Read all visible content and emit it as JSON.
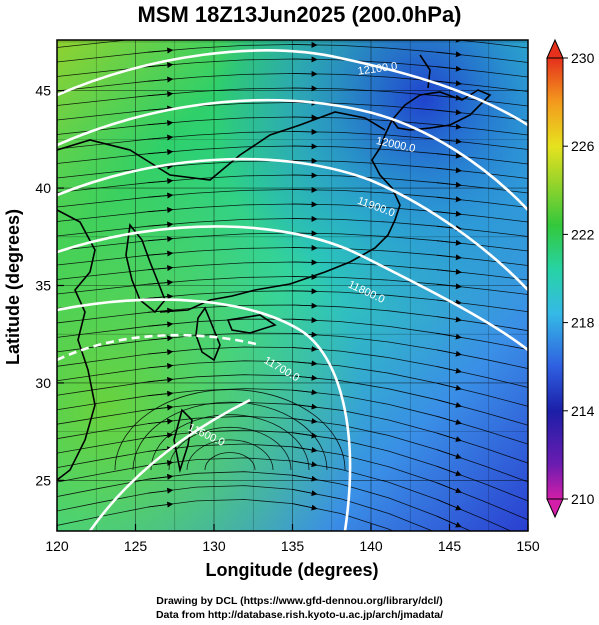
{
  "title": "MSM 18Z13Jun2025 (200.0hPa)",
  "map": {
    "x_axis": {
      "label": "Longitude (degrees)",
      "range": [
        120,
        150
      ],
      "ticks": [
        "120",
        "125",
        "130",
        "135",
        "140",
        "145",
        "150"
      ]
    },
    "y_axis": {
      "label": "Latitude (degrees)",
      "range": [
        22.4,
        47.6
      ],
      "ticks": [
        "25",
        "30",
        "35",
        "40",
        "45"
      ]
    },
    "grid": true,
    "field": "temperature (shaded) with wind streamlines and geopotential height contours",
    "contour_labels": [
      "12100.0",
      "12000.0",
      "11900.0",
      "11800.0",
      "11700.0",
      "11600.0"
    ]
  },
  "colorbar": {
    "min": 210,
    "max": 230,
    "tick_labels": [
      "230",
      "226",
      "222",
      "218",
      "214",
      "210"
    ],
    "colors": [
      "#d21ea8",
      "#1b1fa8",
      "#2f5fe0",
      "#35b9e6",
      "#27d3a5",
      "#33c83c",
      "#9ad42a",
      "#e6e21f",
      "#f39a1d",
      "#e5301c"
    ]
  },
  "credits": {
    "line1": "Drawing by DCL (https://www.gfd-dennou.org/library/dcl/)",
    "line2": "Data from http://database.rish.kyoto-u.ac.jp/arch/jmadata/"
  }
}
